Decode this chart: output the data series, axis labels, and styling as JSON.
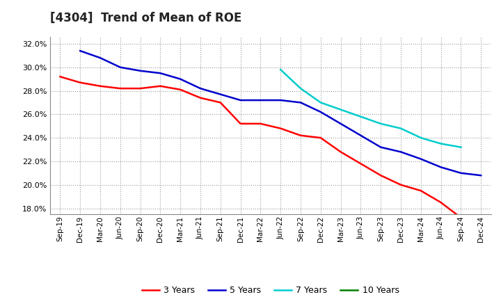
{
  "title": "[4304]  Trend of Mean of ROE",
  "x_labels": [
    "Sep-19",
    "Dec-19",
    "Mar-20",
    "Jun-20",
    "Sep-20",
    "Dec-20",
    "Mar-21",
    "Jun-21",
    "Sep-21",
    "Dec-21",
    "Mar-22",
    "Jun-22",
    "Sep-22",
    "Dec-22",
    "Mar-23",
    "Jun-23",
    "Sep-23",
    "Dec-23",
    "Mar-24",
    "Jun-24",
    "Sep-24",
    "Dec-24"
  ],
  "series": {
    "3 Years": {
      "color": "#FF0000",
      "data": [
        0.292,
        0.287,
        0.284,
        0.282,
        0.282,
        0.284,
        0.281,
        0.274,
        0.27,
        0.252,
        0.252,
        0.248,
        0.242,
        0.24,
        0.228,
        0.218,
        0.208,
        0.2,
        0.195,
        0.185,
        0.172,
        null
      ]
    },
    "5 Years": {
      "color": "#0000CC",
      "data": [
        null,
        0.314,
        0.308,
        0.3,
        0.297,
        0.295,
        0.29,
        0.282,
        0.277,
        0.272,
        0.272,
        0.272,
        0.27,
        0.262,
        0.252,
        0.242,
        0.232,
        0.228,
        0.222,
        0.215,
        0.21,
        0.208
      ]
    },
    "7 Years": {
      "color": "#00CCCC",
      "data": [
        null,
        null,
        null,
        null,
        null,
        null,
        null,
        null,
        null,
        null,
        null,
        0.298,
        0.282,
        0.27,
        0.264,
        0.258,
        0.252,
        0.248,
        0.24,
        0.235,
        0.232,
        null
      ]
    },
    "10 Years": {
      "color": "#008000",
      "data": [
        null,
        null,
        null,
        null,
        null,
        null,
        null,
        null,
        null,
        null,
        null,
        null,
        null,
        null,
        null,
        null,
        null,
        null,
        null,
        null,
        null,
        null
      ]
    }
  },
  "ylim": [
    0.175,
    0.326
  ],
  "yticks": [
    0.18,
    0.2,
    0.22,
    0.24,
    0.26,
    0.28,
    0.3,
    0.32
  ],
  "background_color": "#FFFFFF",
  "plot_bg_color": "#FFFFFF",
  "grid_color": "#999999",
  "title_fontsize": 12,
  "line_width": 1.8
}
